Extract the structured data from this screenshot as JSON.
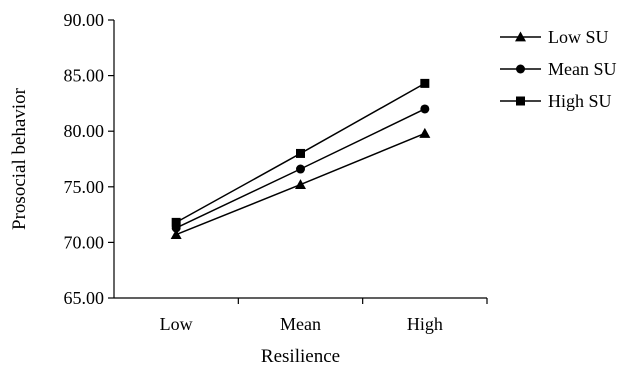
{
  "chart_data": {
    "type": "line",
    "title": "",
    "xlabel": "Resilience",
    "ylabel": "Prosocial behavior",
    "categories": [
      "Low",
      "Mean",
      "High"
    ],
    "ylim": [
      65,
      90
    ],
    "yticks": [
      "65.00",
      "70.00",
      "75.00",
      "80.00",
      "85.00",
      "90.00"
    ],
    "grid": false,
    "legend_position": "top-right",
    "series": [
      {
        "name": "Low SU",
        "marker": "triangle",
        "values": [
          70.7,
          75.2,
          79.8
        ]
      },
      {
        "name": "Mean SU",
        "marker": "circle",
        "values": [
          71.3,
          76.6,
          82.0
        ]
      },
      {
        "name": "High SU",
        "marker": "square",
        "values": [
          71.8,
          78.0,
          84.3
        ]
      }
    ],
    "color": "#000000"
  }
}
